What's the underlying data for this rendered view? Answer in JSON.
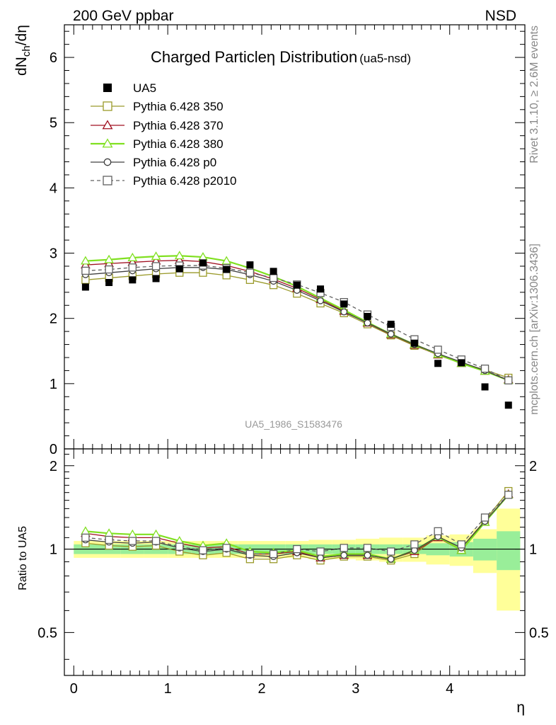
{
  "header": {
    "left_label": "200 GeV ppbar",
    "right_label": "NSD"
  },
  "side_labels": {
    "rivet": "Rivet 3.1.10, ≥ 2.6M events",
    "mcplots": "mcplots.cern.ch [arXiv:1306.3436]"
  },
  "chart_data": [
    {
      "type": "scatter",
      "title_main": "Charged Particleη Distribution",
      "title_sub": "(ua5-nsd)",
      "ylabel": "dN",
      "ylabel_sub": "ch",
      "ylabel_tail": "/dη",
      "watermark": "UA5_1986_S1583476",
      "xlim": [
        -0.1,
        4.8
      ],
      "ylim": [
        0,
        6.5
      ],
      "yticks": [
        0,
        1,
        2,
        3,
        4,
        5,
        6
      ],
      "x": [
        0.125,
        0.375,
        0.625,
        0.875,
        1.125,
        1.375,
        1.625,
        1.875,
        2.125,
        2.375,
        2.625,
        2.875,
        3.125,
        3.375,
        3.625,
        3.875,
        4.125,
        4.375,
        4.625
      ],
      "data_series": {
        "name": "UA5",
        "values": [
          2.48,
          2.55,
          2.59,
          2.61,
          2.76,
          2.85,
          2.75,
          2.82,
          2.72,
          2.51,
          2.45,
          2.22,
          2.03,
          1.91,
          1.62,
          1.31,
          1.32,
          0.95,
          0.67
        ]
      },
      "series": [
        {
          "name": "Pythia 6.428 350",
          "color": "#9a9a2a",
          "marker": "square",
          "dash": false,
          "values": [
            2.59,
            2.62,
            2.65,
            2.68,
            2.7,
            2.7,
            2.66,
            2.59,
            2.51,
            2.38,
            2.23,
            2.08,
            1.91,
            1.74,
            1.58,
            1.45,
            1.32,
            1.21,
            1.09
          ]
        },
        {
          "name": "Pythia 6.428 370",
          "color": "#a01020",
          "marker": "triangle",
          "dash": false,
          "values": [
            2.82,
            2.84,
            2.86,
            2.88,
            2.89,
            2.87,
            2.81,
            2.72,
            2.6,
            2.46,
            2.29,
            2.11,
            1.93,
            1.75,
            1.59,
            1.44,
            1.31,
            1.19,
            1.06
          ]
        },
        {
          "name": "Pythia 6.428 380",
          "color": "#80e020",
          "marker": "triangle",
          "dash": false,
          "values": [
            2.88,
            2.9,
            2.93,
            2.95,
            2.96,
            2.94,
            2.88,
            2.77,
            2.64,
            2.49,
            2.31,
            2.13,
            1.94,
            1.76,
            1.6,
            1.45,
            1.31,
            1.19,
            1.05
          ]
        },
        {
          "name": "Pythia 6.428 p0",
          "color": "#404040",
          "marker": "circle",
          "dash": false,
          "values": [
            2.67,
            2.7,
            2.73,
            2.76,
            2.78,
            2.78,
            2.75,
            2.67,
            2.57,
            2.43,
            2.27,
            2.1,
            1.93,
            1.76,
            1.6,
            1.46,
            1.33,
            1.2,
            1.05
          ]
        },
        {
          "name": "Pythia 6.428 p2010",
          "color": "#606060",
          "marker": "square",
          "dash": true,
          "values": [
            2.73,
            2.75,
            2.78,
            2.8,
            2.81,
            2.81,
            2.77,
            2.7,
            2.62,
            2.52,
            2.39,
            2.25,
            2.06,
            1.87,
            1.68,
            1.52,
            1.37,
            1.23,
            1.05
          ]
        }
      ]
    },
    {
      "type": "scatter",
      "ylabel": "Ratio to UA5",
      "xlabel": "η",
      "xlim": [
        -0.1,
        4.8
      ],
      "ylim": [
        0.35,
        2.3
      ],
      "yticks": [
        0.5,
        1,
        2
      ],
      "xticks": [
        0,
        1,
        2,
        3,
        4
      ],
      "band_inner": [
        0.04,
        0.04,
        0.04,
        0.04,
        0.04,
        0.04,
        0.04,
        0.04,
        0.04,
        0.04,
        0.04,
        0.04,
        0.04,
        0.04,
        0.04,
        0.05,
        0.06,
        0.09,
        0.16
      ],
      "band_outer": [
        0.07,
        0.07,
        0.07,
        0.07,
        0.07,
        0.07,
        0.07,
        0.07,
        0.07,
        0.07,
        0.08,
        0.08,
        0.09,
        0.1,
        0.1,
        0.12,
        0.13,
        0.18,
        0.4
      ],
      "ratio_values": [
        [
          1.05,
          1.03,
          1.02,
          1.03,
          0.98,
          0.95,
          0.97,
          0.92,
          0.92,
          0.95,
          0.91,
          0.94,
          0.94,
          0.91,
          0.96,
          1.11,
          1.01,
          1.27,
          1.62
        ],
        [
          1.14,
          1.11,
          1.1,
          1.1,
          1.05,
          1.01,
          1.02,
          0.96,
          0.96,
          0.98,
          0.93,
          0.95,
          0.95,
          0.92,
          0.98,
          1.1,
          0.99,
          1.25,
          1.58
        ],
        [
          1.16,
          1.14,
          1.13,
          1.13,
          1.07,
          1.03,
          1.05,
          0.98,
          0.97,
          0.99,
          0.94,
          0.96,
          0.96,
          0.92,
          0.99,
          1.11,
          0.99,
          1.25,
          1.57
        ],
        [
          1.08,
          1.06,
          1.05,
          1.06,
          1.01,
          0.98,
          1.0,
          0.95,
          0.94,
          0.97,
          0.93,
          0.95,
          0.95,
          0.92,
          0.99,
          1.11,
          1.01,
          1.26,
          1.57
        ],
        [
          1.1,
          1.08,
          1.07,
          1.07,
          1.02,
          0.99,
          1.01,
          0.96,
          0.96,
          1.0,
          0.98,
          1.01,
          1.01,
          0.98,
          1.04,
          1.16,
          1.04,
          1.3,
          1.57
        ]
      ]
    }
  ]
}
